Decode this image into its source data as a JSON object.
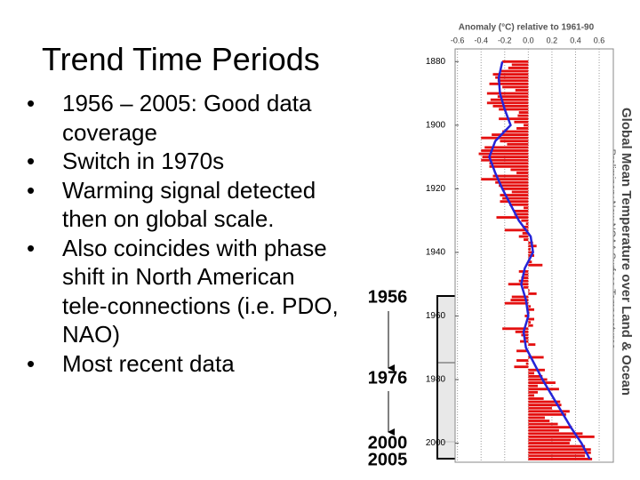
{
  "slide": {
    "title": "Trend Time Periods",
    "bullets": [
      "1956 – 2005: Good data coverage",
      "Switch in 1970s",
      "Warming signal detected then on global scale.",
      "Also coincides with phase shift in North American tele-connections (i.e. PDO, NAO)",
      "Most recent data"
    ]
  },
  "timeline": [
    "1956",
    "1976",
    "2000",
    "2005"
  ],
  "chart_data": {
    "type": "bar",
    "orientation": "horizontal",
    "title": "Anomaly (°C) relative to 1961-90",
    "side_title": "Global Mean Temperature over Land & Ocean",
    "side_subtitle": "Preliminary New NOAA Surface Temperatures",
    "x": [
      1880,
      1881,
      1882,
      1883,
      1884,
      1885,
      1886,
      1887,
      1888,
      1889,
      1890,
      1891,
      1892,
      1893,
      1894,
      1895,
      1896,
      1897,
      1898,
      1899,
      1900,
      1901,
      1902,
      1903,
      1904,
      1905,
      1906,
      1907,
      1908,
      1909,
      1910,
      1911,
      1912,
      1913,
      1914,
      1915,
      1916,
      1917,
      1918,
      1919,
      1920,
      1921,
      1922,
      1923,
      1924,
      1925,
      1926,
      1927,
      1928,
      1929,
      1930,
      1931,
      1932,
      1933,
      1934,
      1935,
      1936,
      1937,
      1938,
      1939,
      1940,
      1941,
      1942,
      1943,
      1944,
      1945,
      1946,
      1947,
      1948,
      1949,
      1950,
      1951,
      1952,
      1953,
      1954,
      1955,
      1956,
      1957,
      1958,
      1959,
      1960,
      1961,
      1962,
      1963,
      1964,
      1965,
      1966,
      1967,
      1968,
      1969,
      1970,
      1971,
      1972,
      1973,
      1974,
      1975,
      1976,
      1977,
      1978,
      1979,
      1980,
      1981,
      1982,
      1983,
      1984,
      1985,
      1986,
      1987,
      1988,
      1989,
      1990,
      1991,
      1992,
      1993,
      1994,
      1995,
      1996,
      1997,
      1998,
      1999,
      2000,
      2001,
      2002,
      2003,
      2004,
      2005
    ],
    "series": [
      {
        "color": "#e41010",
        "values": [
          -0.22,
          -0.14,
          -0.17,
          -0.23,
          -0.3,
          -0.28,
          -0.26,
          -0.33,
          -0.22,
          -0.11,
          -0.35,
          -0.26,
          -0.32,
          -0.35,
          -0.3,
          -0.25,
          -0.08,
          -0.09,
          -0.25,
          -0.12,
          -0.04,
          -0.1,
          -0.22,
          -0.31,
          -0.4,
          -0.24,
          -0.18,
          -0.37,
          -0.4,
          -0.42,
          -0.39,
          -0.4,
          -0.33,
          -0.33,
          -0.15,
          -0.1,
          -0.3,
          -0.4,
          -0.28,
          -0.25,
          -0.22,
          -0.14,
          -0.24,
          -0.22,
          -0.24,
          -0.16,
          -0.04,
          -0.12,
          -0.12,
          -0.27,
          -0.06,
          -0.02,
          -0.05,
          -0.2,
          -0.05,
          -0.08,
          -0.04,
          0.04,
          0.07,
          0.02,
          0.04,
          0.05,
          0.02,
          0.03,
          0.12,
          0.0,
          -0.08,
          -0.05,
          -0.06,
          -0.08,
          -0.17,
          -0.04,
          0.01,
          0.07,
          -0.14,
          -0.15,
          -0.2,
          0.02,
          0.05,
          0.01,
          -0.03,
          0.05,
          0.02,
          0.04,
          -0.22,
          -0.11,
          -0.06,
          -0.04,
          -0.07,
          0.06,
          0.0,
          -0.1,
          0.0,
          0.13,
          -0.1,
          -0.02,
          -0.12,
          0.14,
          0.05,
          0.12,
          0.16,
          0.23,
          0.08,
          0.26,
          0.08,
          0.05,
          0.13,
          0.27,
          0.28,
          0.2,
          0.35,
          0.32,
          0.14,
          0.18,
          0.25,
          0.37,
          0.26,
          0.46,
          0.56,
          0.36,
          0.35,
          0.48,
          0.53,
          0.53,
          0.48,
          0.54
        ]
      }
    ],
    "smooth": {
      "color": "#2424d8",
      "x": [
        1880,
        1885,
        1890,
        1895,
        1900,
        1905,
        1910,
        1915,
        1920,
        1925,
        1930,
        1935,
        1940,
        1945,
        1950,
        1955,
        1960,
        1965,
        1970,
        1975,
        1980,
        1985,
        1990,
        1995,
        2000,
        2005
      ],
      "values": [
        -0.22,
        -0.25,
        -0.24,
        -0.2,
        -0.15,
        -0.28,
        -0.33,
        -0.28,
        -0.22,
        -0.15,
        -0.08,
        0.02,
        0.04,
        -0.03,
        -0.06,
        -0.02,
        0.0,
        -0.04,
        -0.02,
        0.05,
        0.12,
        0.2,
        0.28,
        0.36,
        0.45,
        0.52
      ]
    },
    "xlim": [
      -0.62,
      0.72
    ],
    "xticks": [
      -0.6,
      -0.4,
      -0.2,
      {
        "value": 0,
        "label": "0.0"
      },
      0.2,
      0.4,
      0.6
    ],
    "ylim": [
      1876,
      2006
    ],
    "yticks": [
      1880,
      1900,
      1920,
      1940,
      1960,
      1980,
      2000
    ],
    "grid": true
  }
}
